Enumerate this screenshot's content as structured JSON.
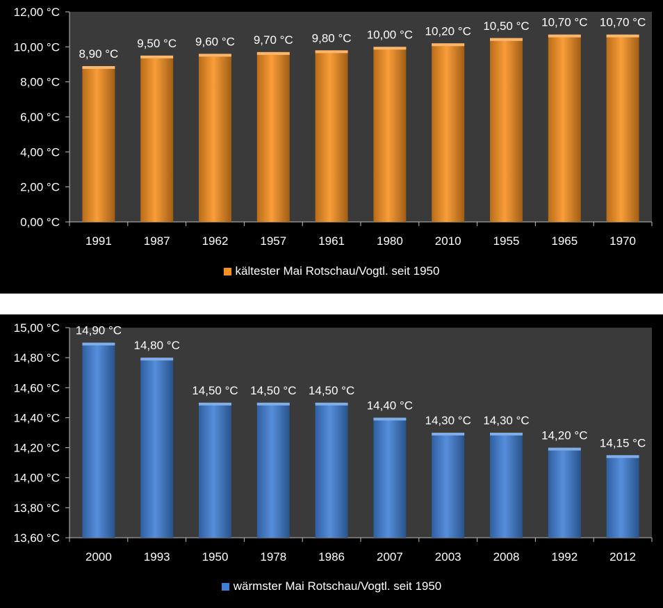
{
  "chart_data": [
    {
      "type": "bar",
      "title": "",
      "xlabel": "",
      "ylabel": "",
      "categories": [
        "1991",
        "1987",
        "1962",
        "1957",
        "1961",
        "1980",
        "2010",
        "1955",
        "1965",
        "1970"
      ],
      "series": [
        {
          "name": "kältester Mai Rotschau/Vogtl. seit 1950",
          "values": [
            8.9,
            9.5,
            9.6,
            9.7,
            9.8,
            10.0,
            10.2,
            10.5,
            10.7,
            10.7
          ]
        }
      ],
      "data_labels": [
        "8,90 °C",
        "9,50 °C",
        "9,60 °C",
        "9,70 °C",
        "9,80 °C",
        "10,00 °C",
        "10,20 °C",
        "10,50 °C",
        "10,70 °C",
        "10,70 °C"
      ],
      "ylim": [
        0,
        12
      ],
      "yticks": [
        0,
        2,
        4,
        6,
        8,
        10,
        12
      ],
      "ytick_labels": [
        "0,00 °C",
        "2,00 °C",
        "4,00 °C",
        "6,00 °C",
        "8,00 °C",
        "10,00 °C",
        "12,00 °C"
      ],
      "legend_position": "bottom",
      "bar_color": "#f7901e",
      "plot_background": "#3a3a3a",
      "grid": false
    },
    {
      "type": "bar",
      "title": "",
      "xlabel": "",
      "ylabel": "",
      "categories": [
        "2000",
        "1993",
        "1950",
        "1978",
        "1986",
        "2007",
        "2003",
        "2008",
        "1992",
        "2012"
      ],
      "series": [
        {
          "name": "wärmster Mai Rotschau/Vogtl. seit 1950",
          "values": [
            14.9,
            14.8,
            14.5,
            14.5,
            14.5,
            14.4,
            14.3,
            14.3,
            14.2,
            14.15
          ]
        }
      ],
      "data_labels": [
        "14,90 °C",
        "14,80 °C",
        "14,50 °C",
        "14,50 °C",
        "14,50 °C",
        "14,40 °C",
        "14,30 °C",
        "14,30 °C",
        "14,20 °C",
        "14,15 °C"
      ],
      "ylim": [
        13.6,
        15.0
      ],
      "yticks": [
        13.6,
        13.8,
        14.0,
        14.2,
        14.4,
        14.6,
        14.8,
        15.0
      ],
      "ytick_labels": [
        "13,60 °C",
        "13,80 °C",
        "14,00 °C",
        "14,20 °C",
        "14,40 °C",
        "14,60 °C",
        "14,80 °C",
        "15,00 °C"
      ],
      "legend_position": "bottom",
      "bar_color": "#3f7fd6",
      "plot_background": "#3a3a3a",
      "grid": false
    }
  ]
}
